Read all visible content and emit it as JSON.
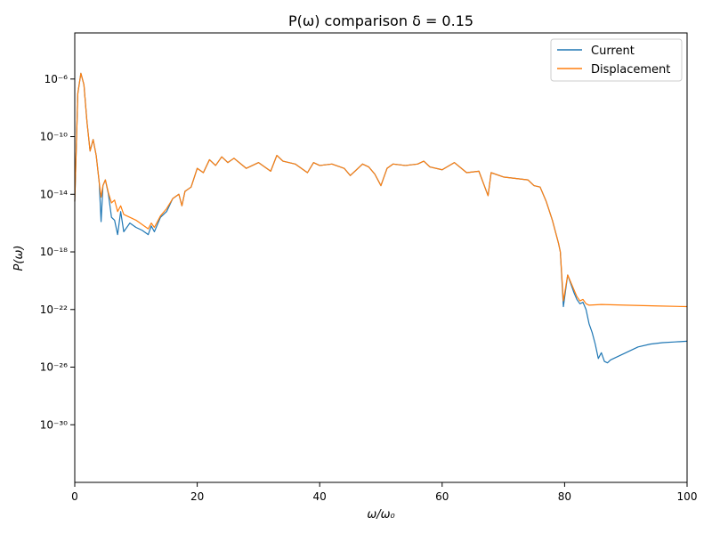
{
  "chart_data": {
    "type": "line",
    "title": "P(ω) comparison δ = 0.15",
    "xlabel": "ω/ω₀",
    "ylabel": "P(ω)",
    "xlim": [
      0,
      100
    ],
    "ylim_log10": [
      -34,
      -2.8
    ],
    "yscale": "log",
    "grid": false,
    "legend_position": "top-right",
    "x_ticks": [
      0,
      20,
      40,
      60,
      80,
      100
    ],
    "x_tick_labels": [
      "0",
      "20",
      "40",
      "60",
      "80",
      "100"
    ],
    "y_tick_exponents": [
      -6,
      -10,
      -14,
      -18,
      -22,
      -26,
      -30
    ],
    "y_tick_labels": [
      "10⁻⁶",
      "10⁻¹⁰",
      "10⁻¹⁴",
      "10⁻¹⁸",
      "10⁻²²",
      "10⁻²⁶",
      "10⁻³⁰"
    ],
    "series": [
      {
        "name": "Current",
        "color": "#1f77b4",
        "x": [
          0,
          0.5,
          1.0,
          1.5,
          2.0,
          2.5,
          3.0,
          3.5,
          4.0,
          4.3,
          4.6,
          5.0,
          5.5,
          6.0,
          6.5,
          7.0,
          7.5,
          8.0,
          9.0,
          10.0,
          11.0,
          12.0,
          12.5,
          13.0,
          14.0,
          15.0,
          16.0,
          17.0,
          17.5,
          18.0,
          19.0,
          20.0,
          21.0,
          22.0,
          23.0,
          24.0,
          25.0,
          26.0,
          28.0,
          30.0,
          32.0,
          33.0,
          34.0,
          36.0,
          38.0,
          39.0,
          40.0,
          42.0,
          44.0,
          45.0,
          46.0,
          47.0,
          48.0,
          49.0,
          50.0,
          51.0,
          52.0,
          54.0,
          56.0,
          57.0,
          58.0,
          60.0,
          62.0,
          64.0,
          66.0,
          67.5,
          68.0,
          70.0,
          72.0,
          74.0,
          75.0,
          76.0,
          77.0,
          78.0,
          79.0,
          79.3,
          79.8,
          80.5,
          81.5,
          82.0,
          82.5,
          83.0,
          83.5,
          84.0,
          84.5,
          85.0,
          85.5,
          86.0,
          86.5,
          87.0,
          87.5,
          88.0,
          90.0,
          92.0,
          94.0,
          96.0,
          98.0,
          100.0
        ],
        "y_log10": [
          -14.5,
          -7,
          -5.6,
          -6.4,
          -9,
          -11,
          -10.2,
          -11.3,
          -13.2,
          -15.9,
          -13.4,
          -13.0,
          -14.0,
          -15.6,
          -15.8,
          -16.8,
          -15.2,
          -16.6,
          -16.0,
          -16.3,
          -16.5,
          -16.8,
          -16.2,
          -16.6,
          -15.6,
          -15.2,
          -14.3,
          -14.0,
          -14.8,
          -13.8,
          -13.5,
          -12.2,
          -12.5,
          -11.6,
          -12.0,
          -11.4,
          -11.8,
          -11.5,
          -12.2,
          -11.8,
          -12.4,
          -11.3,
          -11.7,
          -11.9,
          -12.5,
          -11.8,
          -12.0,
          -11.9,
          -12.2,
          -12.7,
          -12.3,
          -11.9,
          -12.1,
          -12.6,
          -13.4,
          -12.2,
          -11.9,
          -12.0,
          -11.9,
          -11.7,
          -12.1,
          -12.3,
          -11.8,
          -12.5,
          -12.4,
          -14.1,
          -12.5,
          -12.8,
          -12.9,
          -13.0,
          -13.4,
          -13.5,
          -14.5,
          -15.8,
          -17.4,
          -18.0,
          -21.8,
          -19.6,
          -20.8,
          -21.3,
          -21.6,
          -21.5,
          -22.0,
          -23.0,
          -23.6,
          -24.4,
          -25.4,
          -25.0,
          -25.6,
          -25.7,
          -25.5,
          -25.4,
          -25.0,
          -24.6,
          -24.4,
          -24.3,
          -24.25,
          -24.2
        ]
      },
      {
        "name": "Displacement",
        "color": "#ff7f0e",
        "x": [
          0,
          0.5,
          1.0,
          1.5,
          2.0,
          2.5,
          3.0,
          3.5,
          4.0,
          4.3,
          4.6,
          5.0,
          5.5,
          6.0,
          6.5,
          7.0,
          7.5,
          8.0,
          9.0,
          10.0,
          11.0,
          12.0,
          12.5,
          13.0,
          14.0,
          15.0,
          16.0,
          17.0,
          17.5,
          18.0,
          19.0,
          20.0,
          21.0,
          22.0,
          23.0,
          24.0,
          25.0,
          26.0,
          28.0,
          30.0,
          32.0,
          33.0,
          34.0,
          36.0,
          38.0,
          39.0,
          40.0,
          42.0,
          44.0,
          45.0,
          46.0,
          47.0,
          48.0,
          49.0,
          50.0,
          51.0,
          52.0,
          54.0,
          56.0,
          57.0,
          58.0,
          60.0,
          62.0,
          64.0,
          66.0,
          67.5,
          68.0,
          70.0,
          72.0,
          74.0,
          75.0,
          76.0,
          77.0,
          78.0,
          79.0,
          79.3,
          79.8,
          80.5,
          81.5,
          82.0,
          82.5,
          83.0,
          83.5,
          84.0,
          86.0,
          90.0,
          95.0,
          100.0
        ],
        "y_log10": [
          -14.5,
          -7,
          -5.6,
          -6.4,
          -9,
          -11,
          -10.2,
          -11.3,
          -13.2,
          -14.2,
          -13.4,
          -13.0,
          -13.9,
          -14.6,
          -14.4,
          -15.2,
          -14.8,
          -15.4,
          -15.6,
          -15.8,
          -16.1,
          -16.4,
          -16.0,
          -16.3,
          -15.5,
          -15.0,
          -14.3,
          -14.0,
          -14.8,
          -13.8,
          -13.5,
          -12.2,
          -12.5,
          -11.6,
          -12.0,
          -11.4,
          -11.8,
          -11.5,
          -12.2,
          -11.8,
          -12.4,
          -11.3,
          -11.7,
          -11.9,
          -12.5,
          -11.8,
          -12.0,
          -11.9,
          -12.2,
          -12.7,
          -12.3,
          -11.9,
          -12.1,
          -12.6,
          -13.4,
          -12.2,
          -11.9,
          -12.0,
          -11.9,
          -11.7,
          -12.1,
          -12.3,
          -11.8,
          -12.5,
          -12.4,
          -14.1,
          -12.5,
          -12.8,
          -12.9,
          -13.0,
          -13.4,
          -13.5,
          -14.5,
          -15.8,
          -17.4,
          -18.0,
          -21.4,
          -19.6,
          -20.6,
          -21.1,
          -21.4,
          -21.3,
          -21.6,
          -21.7,
          -21.65,
          -21.7,
          -21.75,
          -21.8
        ]
      }
    ]
  }
}
